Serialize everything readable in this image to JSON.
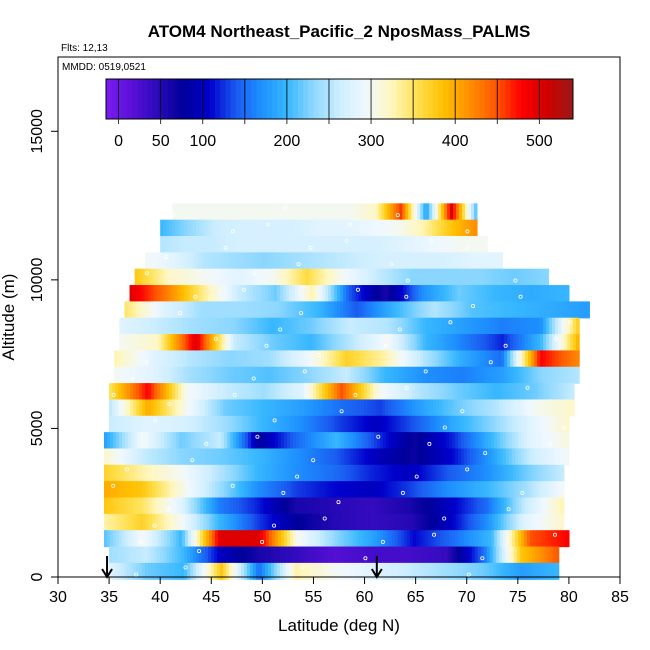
{
  "chart_data": {
    "type": "heatmap",
    "title": "ATOM4 Northeast_Pacific_2 NposMass_PALMS",
    "flights_label": "Flts: 12,13",
    "dates_label": "MMDD: 0519,0521",
    "xlabel": "Latitude (deg N)",
    "ylabel": "Altitude (m)",
    "xlim": [
      30,
      85
    ],
    "ylim": [
      0,
      17500
    ],
    "xticks": [
      30,
      35,
      40,
      45,
      50,
      55,
      60,
      65,
      70,
      75,
      80,
      85
    ],
    "yticks": [
      0,
      5000,
      10000,
      15000
    ],
    "colorbar": {
      "range": [
        -15,
        540
      ],
      "ticks": [
        0,
        50,
        100,
        200,
        300,
        400,
        500
      ],
      "colors": [
        "#7a1cf0",
        "#5a10d8",
        "#2a0ab8",
        "#00009a",
        "#0000cc",
        "#1a5af0",
        "#1e90ff",
        "#38b8ff",
        "#8fd8ff",
        "#cdeeff",
        "#f0f8ff",
        "#fff7c0",
        "#ffe050",
        "#ffc000",
        "#ff9000",
        "#ff5a00",
        "#ff0000",
        "#d00000",
        "#9a1818"
      ]
    },
    "altitude_bands": [
      {
        "alt": 12300,
        "lat": [
          41.2,
          71.0
        ],
        "values": [
          300,
          300,
          300,
          300,
          300,
          300,
          300,
          300,
          320,
          460,
          180,
          500,
          200
        ]
      },
      {
        "alt": 11750,
        "lat": [
          40.0,
          71.0
        ],
        "values": [
          200,
          230,
          260,
          270,
          270,
          270,
          280,
          280,
          290,
          300,
          330,
          380,
          420
        ]
      },
      {
        "alt": 11200,
        "lat": [
          40.0,
          72.0
        ],
        "values": [
          250,
          260,
          260,
          270,
          270,
          270,
          270,
          270,
          270,
          280,
          290,
          300,
          300
        ]
      },
      {
        "alt": 10650,
        "lat": [
          38.5,
          73.5
        ],
        "values": [
          300,
          280,
          250,
          240,
          230,
          240,
          250,
          260,
          270,
          270,
          270,
          280,
          280
        ]
      },
      {
        "alt": 10100,
        "lat": [
          37.5,
          78.0
        ],
        "values": [
          380,
          320,
          300,
          280,
          300,
          360,
          300,
          260,
          230,
          230,
          230,
          220,
          230
        ]
      },
      {
        "alt": 9550,
        "lat": [
          37.0,
          80.0
        ],
        "values": [
          500,
          430,
          340,
          260,
          220,
          330,
          140,
          60,
          170,
          220,
          200,
          190,
          200
        ]
      },
      {
        "alt": 9000,
        "lat": [
          36.5,
          82.0
        ],
        "values": [
          350,
          280,
          240,
          240,
          230,
          200,
          140,
          200,
          250,
          210,
          200,
          190,
          180
        ]
      },
      {
        "alt": 8450,
        "lat": [
          36.0,
          81.0
        ],
        "values": [
          280,
          260,
          240,
          230,
          200,
          220,
          260,
          250,
          200,
          180,
          160,
          170,
          380
        ]
      },
      {
        "alt": 7900,
        "lat": [
          36.0,
          81.0
        ],
        "values": [
          300,
          320,
          500,
          260,
          220,
          200,
          250,
          300,
          200,
          160,
          120,
          200,
          400
        ]
      },
      {
        "alt": 7350,
        "lat": [
          35.5,
          81.0
        ],
        "values": [
          330,
          280,
          250,
          230,
          240,
          290,
          370,
          330,
          250,
          190,
          150,
          480,
          420
        ]
      },
      {
        "alt": 6800,
        "lat": [
          35.5,
          81.0
        ],
        "values": [
          300,
          280,
          240,
          220,
          210,
          230,
          260,
          200,
          170,
          160,
          180,
          230,
          250
        ]
      },
      {
        "alt": 6250,
        "lat": [
          35.0,
          80.5
        ],
        "values": [
          350,
          480,
          300,
          260,
          240,
          280,
          450,
          300,
          250,
          220,
          200,
          220,
          260
        ]
      },
      {
        "alt": 5700,
        "lat": [
          35.0,
          80.5
        ],
        "values": [
          250,
          400,
          300,
          220,
          200,
          180,
          150,
          130,
          180,
          220,
          250,
          300,
          320
        ]
      },
      {
        "alt": 5150,
        "lat": [
          35.0,
          80.0
        ],
        "values": [
          260,
          280,
          270,
          240,
          200,
          170,
          130,
          100,
          140,
          190,
          230,
          280,
          320
        ]
      },
      {
        "alt": 4600,
        "lat": [
          34.5,
          80.0
        ],
        "values": [
          180,
          300,
          220,
          260,
          80,
          150,
          200,
          130,
          70,
          120,
          200,
          280,
          310
        ]
      },
      {
        "alt": 4050,
        "lat": [
          34.5,
          80.0
        ],
        "values": [
          320,
          260,
          230,
          220,
          200,
          170,
          140,
          100,
          70,
          110,
          180,
          260,
          300
        ]
      },
      {
        "alt": 3500,
        "lat": [
          34.5,
          79.5
        ],
        "values": [
          370,
          330,
          300,
          250,
          200,
          170,
          150,
          120,
          100,
          140,
          170,
          220,
          260
        ]
      },
      {
        "alt": 2950,
        "lat": [
          34.5,
          79.5
        ],
        "values": [
          400,
          380,
          310,
          240,
          170,
          130,
          110,
          100,
          130,
          170,
          200,
          240,
          300
        ]
      },
      {
        "alt": 2400,
        "lat": [
          34.5,
          79.5
        ],
        "values": [
          380,
          350,
          280,
          160,
          120,
          60,
          50,
          40,
          60,
          100,
          150,
          260,
          330
        ]
      },
      {
        "alt": 1850,
        "lat": [
          34.5,
          79.5
        ],
        "values": [
          330,
          370,
          300,
          200,
          130,
          80,
          50,
          40,
          50,
          100,
          170,
          280,
          320
        ]
      },
      {
        "alt": 1300,
        "lat": [
          34.5,
          80.0
        ],
        "values": [
          210,
          300,
          200,
          500,
          500,
          300,
          230,
          180,
          110,
          150,
          200,
          450,
          480
        ]
      },
      {
        "alt": 750,
        "lat": [
          35.0,
          79.0
        ],
        "values": [
          240,
          260,
          200,
          100,
          60,
          40,
          20,
          30,
          30,
          40,
          150,
          380,
          450
        ]
      },
      {
        "alt": 200,
        "lat": [
          35.0,
          79.0
        ],
        "values": [
          280,
          220,
          200,
          380,
          150,
          330,
          300,
          280,
          260,
          240,
          220,
          180,
          200
        ]
      }
    ],
    "arrows_lat": [
      34.8,
      61.2
    ]
  }
}
